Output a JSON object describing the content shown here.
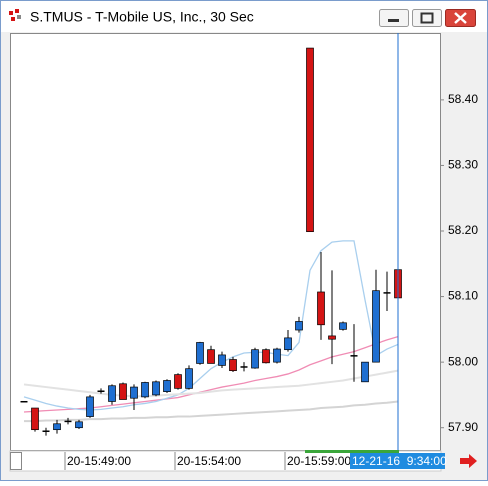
{
  "chart_data": {
    "type": "candlestick",
    "title": "S.TMUS - T-Mobile US, Inc., 30 Sec",
    "up_color": "#1f6fd1",
    "down_color": "#d41414",
    "categories": [
      null,
      null,
      null,
      null,
      "20-15:49:00",
      null,
      null,
      null,
      null,
      null,
      null,
      null,
      null,
      null,
      "20-15:54:00",
      null,
      null,
      null,
      null,
      null,
      null,
      null,
      null,
      null,
      "20-15:59:00",
      null,
      null,
      null,
      null,
      null,
      null,
      null,
      null,
      null,
      null
    ],
    "cursor_label": "12-21-16  9:34:00",
    "open": [
      57.94,
      57.93,
      57.895,
      57.897,
      57.91,
      57.9,
      57.917,
      57.956,
      57.94,
      57.967,
      57.945,
      57.947,
      57.95,
      57.955,
      57.981,
      57.96,
      57.998,
      58.019,
      57.995,
      58.004,
      57.993,
      57.991,
      58.019,
      58.0,
      58.019,
      58.049,
      58.479,
      58.107,
      58.04,
      58.05,
      58.01,
      57.97,
      58.0,
      58.106,
      58.141
    ],
    "high": [
      57.94,
      57.93,
      57.9,
      57.912,
      57.915,
      57.912,
      57.95,
      57.96,
      57.966,
      57.969,
      57.966,
      57.97,
      57.972,
      57.974,
      57.983,
      57.995,
      58.031,
      58.025,
      58.016,
      58.008,
      58.0,
      58.022,
      58.021,
      58.022,
      58.049,
      58.069,
      58.479,
      58.168,
      58.14,
      58.062,
      58.058,
      58.0,
      58.141,
      58.138,
      58.149
    ],
    "low": [
      57.94,
      57.894,
      57.888,
      57.891,
      57.905,
      57.898,
      57.915,
      57.952,
      57.935,
      57.943,
      57.927,
      57.945,
      57.948,
      57.953,
      57.958,
      57.958,
      57.996,
      57.998,
      57.991,
      57.985,
      57.986,
      57.99,
      57.998,
      57.998,
      58.016,
      58.045,
      58.199,
      58.034,
      57.997,
      58.048,
      57.97,
      57.97,
      58.0,
      58.078,
      58.077
    ],
    "close": [
      57.94,
      57.897,
      57.895,
      57.906,
      57.91,
      57.909,
      57.947,
      57.956,
      57.964,
      57.943,
      57.962,
      57.969,
      57.97,
      57.972,
      57.96,
      57.99,
      58.03,
      57.998,
      58.011,
      57.987,
      57.993,
      58.019,
      57.999,
      58.02,
      58.037,
      58.062,
      58.199,
      58.057,
      58.035,
      58.06,
      58.01,
      58.0,
      58.109,
      58.106,
      58.098
    ],
    "series": [
      {
        "color": "#f08cb4",
        "values": [
          57.924,
          57.925,
          57.926,
          57.927,
          57.928,
          57.929,
          57.93,
          57.932,
          57.934,
          57.936,
          57.938,
          57.94,
          57.942,
          57.944,
          57.946,
          57.95,
          57.954,
          57.958,
          57.962,
          57.965,
          57.968,
          57.972,
          57.975,
          57.978,
          57.982,
          57.988,
          57.996,
          58.002,
          58.008,
          58.012,
          58.016,
          58.022,
          58.028,
          58.034,
          58.039
        ]
      },
      {
        "color": "#a9cfee",
        "values": [
          57.947,
          57.942,
          57.937,
          57.933,
          57.93,
          57.928,
          57.927,
          57.928,
          57.93,
          57.932,
          57.935,
          57.937,
          57.94,
          57.945,
          57.95,
          57.96,
          57.975,
          57.99,
          58.0,
          58.008,
          58.014,
          58.015,
          58.015,
          58.012,
          58.01,
          58.03,
          58.14,
          58.17,
          58.183,
          58.185,
          58.185,
          58.095,
          58.01,
          58.02,
          58.027
        ]
      },
      {
        "color": "#e2e2e2",
        "values": [
          57.966,
          57.964,
          57.962,
          57.96,
          57.958,
          57.956,
          57.954,
          57.952,
          57.95,
          57.949,
          57.948,
          57.948,
          57.949,
          57.95,
          57.951,
          57.952,
          57.953,
          57.955,
          57.957,
          57.958,
          57.959,
          57.96,
          57.961,
          57.962,
          57.963,
          57.964,
          57.966,
          57.968,
          57.97,
          57.972,
          57.975,
          57.978,
          57.981,
          57.984,
          57.987
        ]
      },
      {
        "color": "#d4d4d4",
        "values": [
          57.91,
          57.91,
          57.911,
          57.911,
          57.912,
          57.912,
          57.913,
          57.913,
          57.914,
          57.914,
          57.915,
          57.915,
          57.916,
          57.916,
          57.917,
          57.917,
          57.918,
          57.919,
          57.92,
          57.921,
          57.922,
          57.923,
          57.924,
          57.925,
          57.926,
          57.927,
          57.928,
          57.93,
          57.931,
          57.932,
          57.934,
          57.935,
          57.937,
          57.938,
          57.94
        ]
      }
    ],
    "ylim": [
      57.866,
      58.502
    ],
    "yticks": [
      {
        "value": 57.9,
        "label": "57.90"
      },
      {
        "value": 58.0,
        "label": "58.00"
      },
      {
        "value": 58.1,
        "label": "58.10"
      },
      {
        "value": 58.2,
        "label": "58.20"
      },
      {
        "value": 58.3,
        "label": "58.30"
      },
      {
        "value": 58.4,
        "label": "58.40"
      }
    ]
  }
}
